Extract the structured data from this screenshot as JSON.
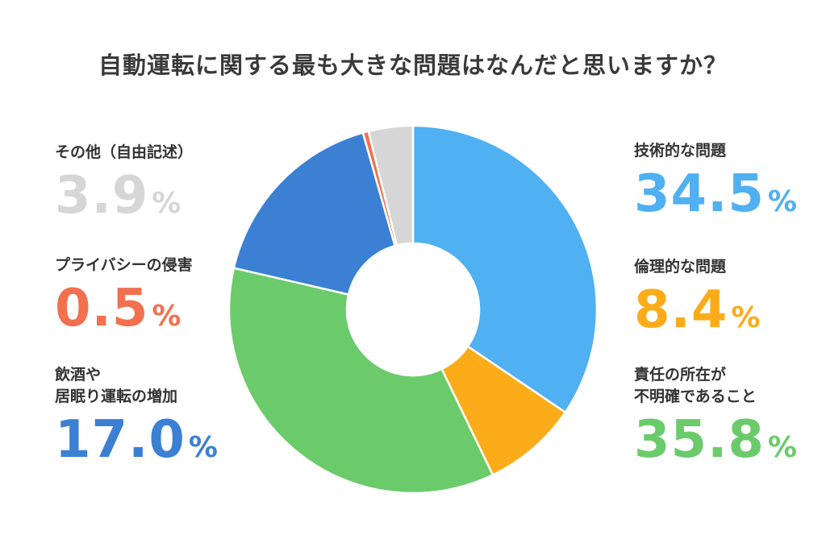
{
  "chart_data": {
    "type": "pie",
    "title": "自動運転に関する最も大きな問題はなんだと思いますか？",
    "unit": "%",
    "slices": [
      {
        "label": "技術的な問題",
        "value": 34.5,
        "color": "#4fb0f2"
      },
      {
        "label": "倫理的な問題",
        "value": 8.4,
        "color": "#fbac18"
      },
      {
        "label": "責任の所在が\n不明確であること",
        "value": 35.8,
        "color": "#6bcb6b"
      },
      {
        "label": "飲酒や\n居眠り運転の増加",
        "value": 17.0,
        "color": "#3b80d3"
      },
      {
        "label": "プライバシーの侵害",
        "value": 0.5,
        "color": "#f2704f"
      },
      {
        "label": "その他（自由記述）",
        "value": 3.9,
        "color": "#d6d6d6"
      }
    ]
  }
}
